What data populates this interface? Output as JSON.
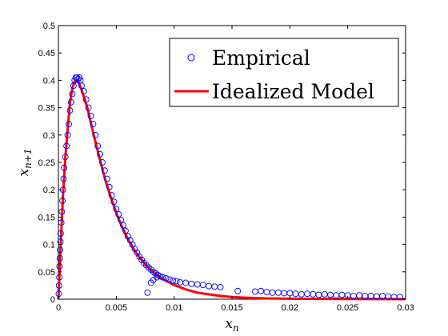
{
  "chart_data": {
    "type": "scatter",
    "title": "",
    "xlabel": {
      "base": "x",
      "sub": "n"
    },
    "ylabel": {
      "base": "x",
      "sub": "n+1"
    },
    "xlim": [
      0,
      0.03
    ],
    "ylim": [
      0,
      0.5
    ],
    "xticks": [
      {
        "value": 0,
        "label": "0"
      },
      {
        "value": 0.005,
        "label": "0.005"
      },
      {
        "value": 0.01,
        "label": "0.01"
      },
      {
        "value": 0.015,
        "label": "0.015"
      },
      {
        "value": 0.02,
        "label": "0.02"
      },
      {
        "value": 0.025,
        "label": "0.025"
      },
      {
        "value": 0.03,
        "label": "0.03"
      }
    ],
    "yticks": [
      {
        "value": 0,
        "label": "0"
      },
      {
        "value": 0.05,
        "label": "0.05"
      },
      {
        "value": 0.1,
        "label": "0.1"
      },
      {
        "value": 0.15,
        "label": "0.15"
      },
      {
        "value": 0.2,
        "label": "0.2"
      },
      {
        "value": 0.25,
        "label": "0.25"
      },
      {
        "value": 0.3,
        "label": "0.3"
      },
      {
        "value": 0.35,
        "label": "0.35"
      },
      {
        "value": 0.4,
        "label": "0.4"
      },
      {
        "value": 0.45,
        "label": "0.45"
      },
      {
        "value": 0.5,
        "label": "0.5"
      }
    ],
    "grid": false,
    "legend_position": "top-right",
    "series": [
      {
        "name": "Empirical",
        "type": "scatter",
        "marker": "open-circle",
        "color": "#0000ff",
        "points": [
          [
            3e-05,
            0.01
          ],
          [
            5e-05,
            0.025
          ],
          [
            8e-05,
            0.04
          ],
          [
            0.0001,
            0.06
          ],
          [
            0.00012,
            0.075
          ],
          [
            0.00015,
            0.09
          ],
          [
            0.00018,
            0.105
          ],
          [
            0.0002,
            0.12
          ],
          [
            0.00025,
            0.14
          ],
          [
            0.0003,
            0.16
          ],
          [
            0.00035,
            0.18
          ],
          [
            0.0004,
            0.2
          ],
          [
            0.00045,
            0.22
          ],
          [
            0.0005,
            0.24
          ],
          [
            0.0006,
            0.26
          ],
          [
            0.0007,
            0.28
          ],
          [
            0.0008,
            0.3
          ],
          [
            0.0009,
            0.32
          ],
          [
            0.001,
            0.345
          ],
          [
            0.0011,
            0.36
          ],
          [
            0.0012,
            0.375
          ],
          [
            0.0013,
            0.39
          ],
          [
            0.0014,
            0.4
          ],
          [
            0.0015,
            0.405
          ],
          [
            0.0016,
            0.405
          ],
          [
            0.0017,
            0.402
          ],
          [
            0.0018,
            0.405
          ],
          [
            0.0019,
            0.4
          ],
          [
            0.002,
            0.39
          ],
          [
            0.0022,
            0.38
          ],
          [
            0.0024,
            0.365
          ],
          [
            0.0026,
            0.35
          ],
          [
            0.0028,
            0.335
          ],
          [
            0.003,
            0.32
          ],
          [
            0.0032,
            0.3
          ],
          [
            0.0034,
            0.28
          ],
          [
            0.0036,
            0.265
          ],
          [
            0.0038,
            0.25
          ],
          [
            0.004,
            0.235
          ],
          [
            0.0042,
            0.22
          ],
          [
            0.0044,
            0.205
          ],
          [
            0.0046,
            0.19
          ],
          [
            0.0048,
            0.178
          ],
          [
            0.005,
            0.165
          ],
          [
            0.0052,
            0.155
          ],
          [
            0.0054,
            0.145
          ],
          [
            0.0056,
            0.135
          ],
          [
            0.0058,
            0.125
          ],
          [
            0.006,
            0.115
          ],
          [
            0.0062,
            0.108
          ],
          [
            0.0064,
            0.1
          ],
          [
            0.0066,
            0.092
          ],
          [
            0.0068,
            0.085
          ],
          [
            0.007,
            0.078
          ],
          [
            0.0072,
            0.072
          ],
          [
            0.0074,
            0.066
          ],
          [
            0.0076,
            0.062
          ],
          [
            0.0078,
            0.058
          ],
          [
            0.008,
            0.054
          ],
          [
            0.0082,
            0.05
          ],
          [
            0.0084,
            0.047
          ],
          [
            0.0086,
            0.044
          ],
          [
            0.0088,
            0.042
          ],
          [
            0.009,
            0.04
          ],
          [
            0.0093,
            0.038
          ],
          [
            0.0096,
            0.036
          ],
          [
            0.0099,
            0.034
          ],
          [
            0.0102,
            0.033
          ],
          [
            0.0105,
            0.031
          ],
          [
            0.011,
            0.03
          ],
          [
            0.0115,
            0.028
          ],
          [
            0.012,
            0.027
          ],
          [
            0.0125,
            0.026
          ],
          [
            0.013,
            0.024
          ],
          [
            0.0135,
            0.023
          ],
          [
            0.014,
            0.022
          ],
          [
            0.008,
            0.03
          ],
          [
            0.0077,
            0.012
          ],
          [
            0.0082,
            0.035
          ],
          [
            0.0085,
            0.04
          ],
          [
            0.0155,
            0.015
          ],
          [
            0.017,
            0.014
          ],
          [
            0.0175,
            0.015
          ],
          [
            0.018,
            0.013
          ],
          [
            0.0185,
            0.012
          ],
          [
            0.019,
            0.012
          ],
          [
            0.0195,
            0.011
          ],
          [
            0.02,
            0.011
          ],
          [
            0.0205,
            0.01
          ],
          [
            0.021,
            0.009
          ],
          [
            0.0215,
            0.01
          ],
          [
            0.022,
            0.009
          ],
          [
            0.0225,
            0.008
          ],
          [
            0.023,
            0.009
          ],
          [
            0.0235,
            0.008
          ],
          [
            0.024,
            0.007
          ],
          [
            0.0245,
            0.008
          ],
          [
            0.025,
            0.007
          ],
          [
            0.0255,
            0.006
          ],
          [
            0.026,
            0.007
          ],
          [
            0.0265,
            0.006
          ],
          [
            0.027,
            0.006
          ],
          [
            0.0275,
            0.005
          ],
          [
            0.028,
            0.006
          ],
          [
            0.0285,
            0.005
          ],
          [
            0.029,
            0.004
          ],
          [
            0.0295,
            0.004
          ]
        ]
      },
      {
        "name": "Idealized Model",
        "type": "line",
        "color": "#ff0000",
        "points": [
          [
            0,
            0
          ],
          [
            0.0001,
            0.05
          ],
          [
            0.0002,
            0.1
          ],
          [
            0.0004,
            0.19
          ],
          [
            0.0006,
            0.26
          ],
          [
            0.0008,
            0.31
          ],
          [
            0.001,
            0.36
          ],
          [
            0.0012,
            0.385
          ],
          [
            0.0014,
            0.398
          ],
          [
            0.0016,
            0.4
          ],
          [
            0.0018,
            0.394
          ],
          [
            0.002,
            0.383
          ],
          [
            0.0025,
            0.35
          ],
          [
            0.003,
            0.305
          ],
          [
            0.0035,
            0.262
          ],
          [
            0.004,
            0.222
          ],
          [
            0.0045,
            0.188
          ],
          [
            0.005,
            0.158
          ],
          [
            0.0055,
            0.132
          ],
          [
            0.006,
            0.11
          ],
          [
            0.0065,
            0.092
          ],
          [
            0.007,
            0.077
          ],
          [
            0.0075,
            0.064
          ],
          [
            0.008,
            0.053
          ],
          [
            0.009,
            0.037
          ],
          [
            0.01,
            0.026
          ],
          [
            0.011,
            0.018
          ],
          [
            0.012,
            0.012
          ],
          [
            0.013,
            0.009
          ],
          [
            0.014,
            0.006
          ],
          [
            0.015,
            0.004
          ],
          [
            0.016,
            0.003
          ],
          [
            0.018,
            0.0015
          ],
          [
            0.02,
            0.001
          ],
          [
            0.025,
            0.0003
          ],
          [
            0.03,
            0.0001
          ]
        ]
      }
    ]
  }
}
